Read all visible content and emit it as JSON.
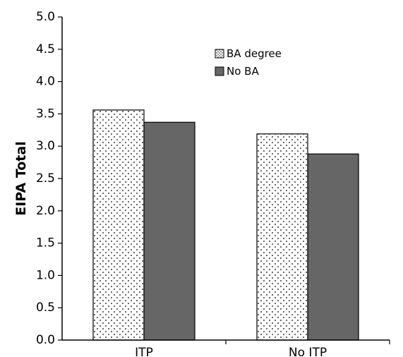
{
  "chart_data": {
    "type": "bar",
    "title": "",
    "xlabel": "",
    "ylabel": "EIPA Total",
    "categories": [
      "ITP",
      "No ITP"
    ],
    "series": [
      {
        "name": "BA degree",
        "values": [
          3.56,
          3.19
        ],
        "fill": "dotted",
        "color": "#ffffff",
        "pattern_color": "#000000"
      },
      {
        "name": "No BA",
        "values": [
          3.37,
          2.88
        ],
        "fill": "solid",
        "color": "#666666"
      }
    ],
    "ylim": [
      0,
      5
    ],
    "yticks": [
      "0.0",
      "0.5",
      "1.0",
      "1.5",
      "2.0",
      "2.5",
      "3.0",
      "3.5",
      "4.0",
      "4.5",
      "5.0"
    ],
    "grid": false,
    "legend_position": "top-center"
  }
}
